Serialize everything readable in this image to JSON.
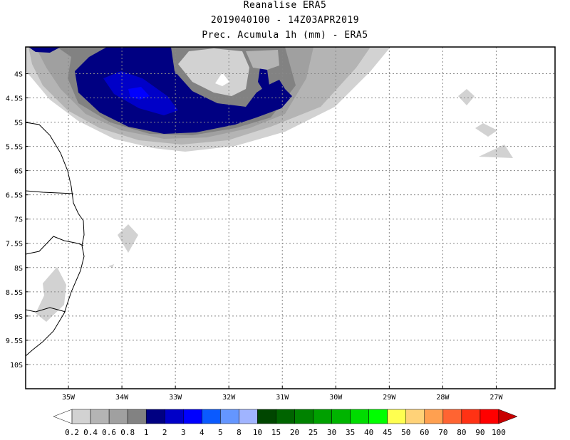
{
  "titles": {
    "line1": "Reanalise ERA5",
    "line2": "2019040100 - 14Z03APR2019",
    "line3": "Prec. Acumula 1h (mm) - ERA5"
  },
  "map": {
    "lon_labels": [
      "35W",
      "34W",
      "33W",
      "32W",
      "31W",
      "30W",
      "29W",
      "28W",
      "27W"
    ],
    "lon_values": [
      -35,
      -34,
      -33,
      -32,
      -31,
      -30,
      -29,
      -28,
      -27
    ],
    "lat_labels": [
      "4S",
      "4.5S",
      "5S",
      "5.5S",
      "6S",
      "6.5S",
      "7S",
      "7.5S",
      "8S",
      "8.5S",
      "9S",
      "9.5S",
      "10S"
    ],
    "lat_values": [
      -4,
      -4.5,
      -5,
      -5.5,
      -6,
      -6.5,
      -7,
      -7.5,
      -8,
      -8.5,
      -9,
      -9.5,
      -10
    ],
    "lon_range": [
      -35.8,
      -25.9
    ],
    "lat_range": [
      -3.45,
      -10.5
    ]
  },
  "colorbar": {
    "labels": [
      "0.2",
      "0.4",
      "0.6",
      "0.8",
      "1",
      "2",
      "3",
      "4",
      "5",
      "8",
      "10",
      "15",
      "20",
      "25",
      "30",
      "35",
      "40",
      "45",
      "50",
      "60",
      "70",
      "80",
      "90",
      "100"
    ],
    "colors": [
      "#ffffff",
      "#d2d2d2",
      "#b4b4b4",
      "#a0a0a0",
      "#828282",
      "#000082",
      "#0000c8",
      "#0000ff",
      "#0a5aff",
      "#6496ff",
      "#a0b4ff",
      "#004600",
      "#006400",
      "#008200",
      "#00a000",
      "#00b400",
      "#00dc00",
      "#00ff00",
      "#ffff50",
      "#ffd278",
      "#ffa050",
      "#ff6432",
      "#ff3214",
      "#ff0000",
      "#c80000"
    ]
  }
}
